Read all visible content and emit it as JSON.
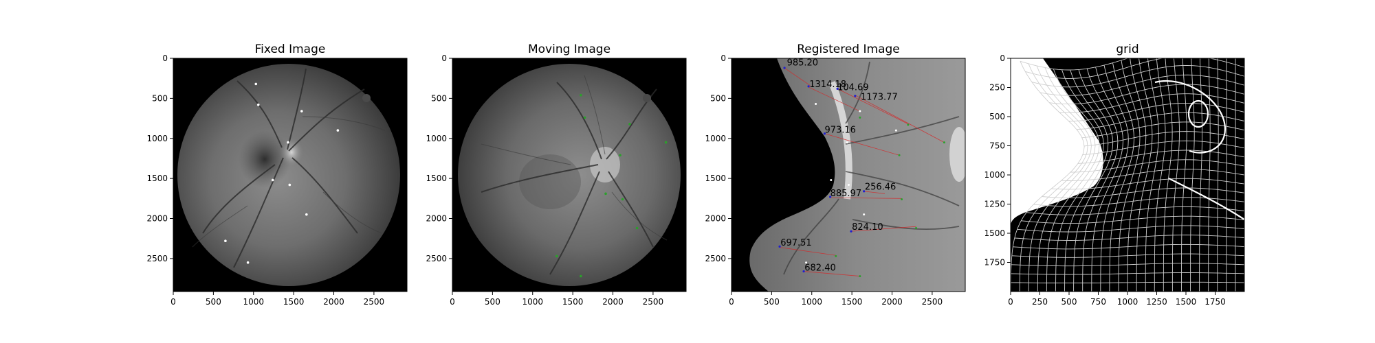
{
  "chart_data": [
    {
      "type": "image",
      "title": "Fixed Image",
      "xlim": [
        0,
        2912
      ],
      "ylim": [
        2912,
        0
      ],
      "xticks": [
        0,
        500,
        1000,
        1500,
        2000,
        2500
      ],
      "yticks": [
        0,
        500,
        1000,
        1500,
        2000,
        2500
      ],
      "xtick_labels": [
        "0",
        "500",
        "1000",
        "1500",
        "2000",
        "2500"
      ],
      "ytick_labels": [
        "0",
        "500",
        "1000",
        "1500",
        "2000",
        "2500"
      ],
      "points_color": "#ffffff",
      "points": [
        [
          1030,
          320
        ],
        [
          1060,
          580
        ],
        [
          1600,
          660
        ],
        [
          1430,
          1050
        ],
        [
          2050,
          900
        ],
        [
          1240,
          1520
        ],
        [
          1450,
          1580
        ],
        [
          1660,
          1950
        ],
        [
          650,
          2280
        ],
        [
          930,
          2550
        ]
      ]
    },
    {
      "type": "image",
      "title": "Moving Image",
      "xlim": [
        0,
        2912
      ],
      "ylim": [
        2912,
        0
      ],
      "xticks": [
        0,
        500,
        1000,
        1500,
        2000,
        2500
      ],
      "yticks": [
        0,
        500,
        1000,
        1500,
        2000,
        2500
      ],
      "xtick_labels": [
        "0",
        "500",
        "1000",
        "1500",
        "2000",
        "2500"
      ],
      "ytick_labels": [
        "0",
        "500",
        "1000",
        "1500",
        "2000",
        "2500"
      ],
      "points_color": "#2ca02c",
      "points": [
        [
          1600,
          460
        ],
        [
          1650,
          740
        ],
        [
          2210,
          820
        ],
        [
          2660,
          1050
        ],
        [
          2090,
          1210
        ],
        [
          1910,
          1690
        ],
        [
          2120,
          1760
        ],
        [
          2300,
          2120
        ],
        [
          1300,
          2470
        ],
        [
          1600,
          2720
        ]
      ]
    },
    {
      "type": "image",
      "title": "Registered Image",
      "xlim": [
        0,
        2912
      ],
      "ylim": [
        2912,
        0
      ],
      "xticks": [
        0,
        500,
        1000,
        1500,
        2000,
        2500
      ],
      "yticks": [
        0,
        500,
        1000,
        1500,
        2000,
        2500
      ],
      "xtick_labels": [
        "0",
        "500",
        "1000",
        "1500",
        "2000",
        "2500"
      ],
      "ytick_labels": [
        "0",
        "500",
        "1000",
        "1500",
        "2000",
        "2500"
      ],
      "annotations": [
        {
          "text": "985.20",
          "x": 690,
          "y": 90
        },
        {
          "text": "1314.18",
          "x": 970,
          "y": 360
        },
        {
          "text": "104.69",
          "x": 1320,
          "y": 400
        },
        {
          "text": "1173.77",
          "x": 1610,
          "y": 520
        },
        {
          "text": "973.16",
          "x": 1160,
          "y": 930
        },
        {
          "text": "256.46",
          "x": 1660,
          "y": 1640
        },
        {
          "text": "885.97",
          "x": 1230,
          "y": 1720
        },
        {
          "text": "824.10",
          "x": 1500,
          "y": 2140
        },
        {
          "text": "697.51",
          "x": 610,
          "y": 2340
        },
        {
          "text": "682.40",
          "x": 910,
          "y": 2650
        }
      ],
      "lines": [
        {
          "from": [
            660,
            120
          ],
          "to": [
            980,
            340
          ]
        },
        {
          "from": [
            960,
            360
          ],
          "to": [
            1600,
            660
          ]
        },
        {
          "from": [
            1320,
            380
          ],
          "to": [
            2200,
            820
          ]
        },
        {
          "from": [
            1540,
            460
          ],
          "to": [
            2650,
            1050
          ]
        },
        {
          "from": [
            1160,
            940
          ],
          "to": [
            2090,
            1210
          ]
        },
        {
          "from": [
            1650,
            1660
          ],
          "to": [
            1910,
            1690
          ]
        },
        {
          "from": [
            1230,
            1740
          ],
          "to": [
            2120,
            1750
          ]
        },
        {
          "from": [
            1490,
            2160
          ],
          "to": [
            2300,
            2100
          ]
        },
        {
          "from": [
            600,
            2360
          ],
          "to": [
            1300,
            2460
          ]
        },
        {
          "from": [
            900,
            2660
          ],
          "to": [
            1600,
            2720
          ]
        }
      ],
      "fixed_points": [
        [
          1050,
          570
        ],
        [
          1600,
          660
        ],
        [
          2050,
          900
        ],
        [
          1440,
          1050
        ],
        [
          1240,
          1520
        ],
        [
          1460,
          1580
        ],
        [
          1650,
          1950
        ],
        [
          930,
          2550
        ]
      ],
      "moving_points": [
        [
          1600,
          740
        ],
        [
          2200,
          830
        ],
        [
          2650,
          1050
        ],
        [
          2090,
          1210
        ],
        [
          2120,
          1760
        ],
        [
          2300,
          2120
        ],
        [
          1300,
          2470
        ],
        [
          1600,
          2720
        ]
      ],
      "registered_points": [
        [
          660,
          120
        ],
        [
          960,
          350
        ],
        [
          1320,
          380
        ],
        [
          1540,
          470
        ],
        [
          1160,
          940
        ],
        [
          1650,
          1660
        ],
        [
          1230,
          1730
        ],
        [
          1490,
          2160
        ],
        [
          600,
          2350
        ],
        [
          900,
          2660
        ]
      ]
    },
    {
      "type": "image",
      "title": "grid",
      "xlim": [
        0,
        2000
      ],
      "ylim": [
        2000,
        0
      ],
      "xticks": [
        0,
        250,
        500,
        750,
        1000,
        1250,
        1500,
        1750
      ],
      "yticks": [
        0,
        250,
        500,
        750,
        1000,
        1250,
        1500,
        1750
      ],
      "xtick_labels": [
        "0",
        "250",
        "500",
        "750",
        "1000",
        "1250",
        "1500",
        "1750"
      ],
      "ytick_labels": [
        "0",
        "250",
        "500",
        "750",
        "1000",
        "1250",
        "1500",
        "1750"
      ]
    }
  ]
}
